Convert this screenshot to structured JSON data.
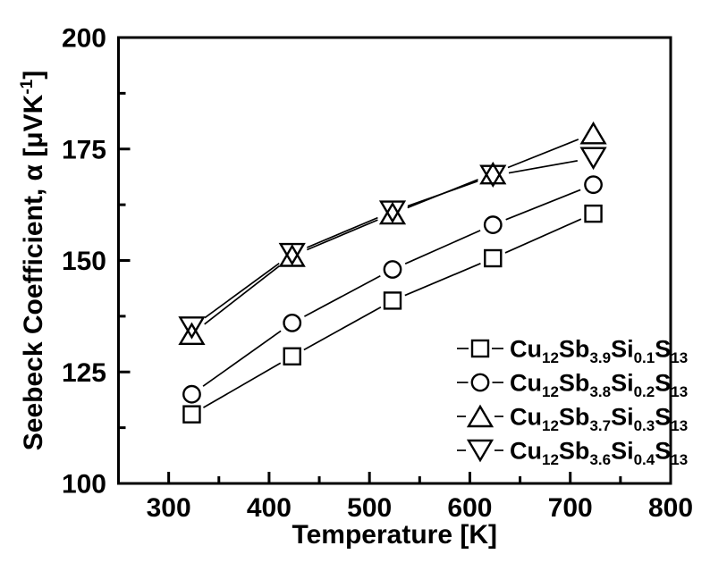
{
  "figure": {
    "description": "Line chart of Seebeck coefficient versus temperature for Cu12Sb(4-x)SixS13 tetrahedrite samples"
  },
  "chart_data": {
    "type": "line",
    "title": "",
    "xlabel": "Temperature [K]",
    "ylabel": "Seebeck Coefficient, α [μVK^{-1}]",
    "xlim": [
      250,
      800
    ],
    "ylim": [
      100,
      200
    ],
    "x_major_ticks": [
      300,
      400,
      500,
      600,
      700,
      800
    ],
    "x_minor_ticks": [
      350,
      450,
      550,
      650,
      750
    ],
    "y_major_ticks": [
      100,
      125,
      150,
      175,
      200
    ],
    "y_minor_ticks": [
      112.5,
      137.5,
      162.5,
      187.5
    ],
    "grid": false,
    "legend_position": "inside-bottom-right",
    "x": [
      323,
      423,
      523,
      623,
      723
    ],
    "series": [
      {
        "label": "Cu_{12}Sb_{3.9}Si_{0.1}S_{13}",
        "marker": "square",
        "values": [
          115.5,
          128.5,
          141,
          150.5,
          160.5
        ]
      },
      {
        "label": "Cu_{12}Sb_{3.8}Si_{0.2}S_{13}",
        "marker": "circle",
        "values": [
          120,
          136,
          148,
          158,
          167
        ]
      },
      {
        "label": "Cu_{12}Sb_{3.7}Si_{0.3}S_{13}",
        "marker": "triangle-up",
        "values": [
          133.5,
          151,
          160.5,
          169.5,
          178.5
        ]
      },
      {
        "label": "Cu_{12}Sb_{3.6}Si_{0.4}S_{13}",
        "marker": "triangle-down",
        "values": [
          135,
          151.5,
          161,
          169,
          173
        ]
      }
    ],
    "colors": {
      "foreground": "#000000",
      "background": "#ffffff"
    }
  }
}
